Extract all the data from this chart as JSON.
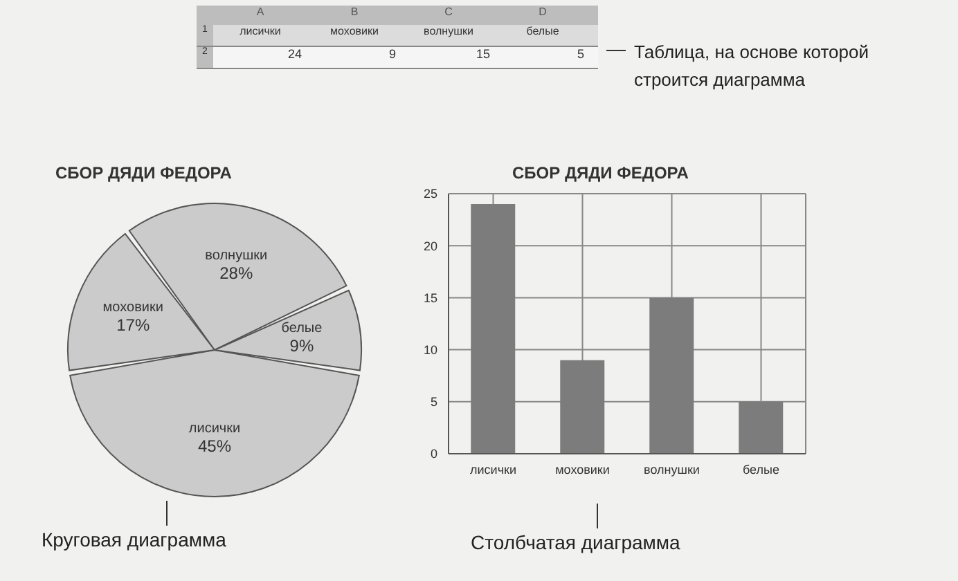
{
  "chart_data": [
    {
      "type": "pie",
      "title": "СБОР ДЯДИ ФЕДОРА",
      "categories": [
        "лисички",
        "моховики",
        "волнушки",
        "белые"
      ],
      "values": [
        45,
        17,
        28,
        9
      ],
      "value_labels": [
        "45%",
        "17%",
        "28%",
        "9%"
      ],
      "colors": [
        "#cbcbcb",
        "#cbcbcb",
        "#cbcbcb",
        "#cbcbcb"
      ],
      "annotations": [
        "Круговая диаграмма"
      ]
    },
    {
      "type": "bar",
      "title": "СБОР ДЯДИ ФЕДОРА",
      "categories": [
        "лисички",
        "моховики",
        "волнушки",
        "белые"
      ],
      "values": [
        24,
        9,
        15,
        5
      ],
      "color": "#7c7c7c",
      "ylim": [
        0,
        25
      ],
      "yticks": [
        0,
        5,
        10,
        15,
        20,
        25
      ],
      "grid": true,
      "annotations": [
        "Столбчатая диаграмма"
      ]
    },
    {
      "type": "other",
      "annotations": [
        "Таблица, на основе которой строится диаграмма",
        "A",
        "B",
        "C",
        "D",
        "1",
        "2",
        "лисички",
        "моховики",
        "волнушки",
        "белые",
        "24",
        "9",
        "15",
        "5"
      ]
    }
  ]
}
